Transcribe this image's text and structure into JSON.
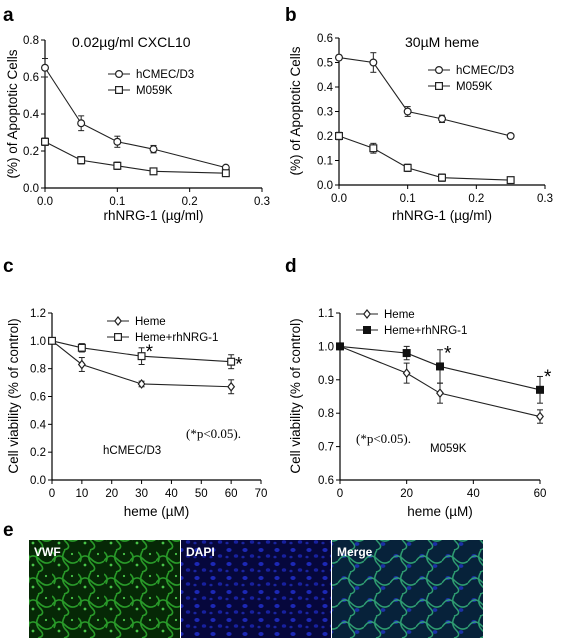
{
  "chart_data": [
    {
      "panel": "a",
      "type": "line",
      "title": "0.02µg/ml CXCL10",
      "xlabel": "rhNRG-1 (µg/ml)",
      "ylabel": "(%) of Apoptotic Cells",
      "xlim": [
        0,
        0.3
      ],
      "ylim": [
        0,
        0.8
      ],
      "xticks": [
        "0.0",
        "0.1",
        "0.2",
        "0.3"
      ],
      "yticks": [
        "0.0",
        "0.2",
        "0.4",
        "0.6",
        "0.8"
      ],
      "legend_position": "top-right",
      "series": [
        {
          "name": "hCMEC/D3",
          "marker": "circle-open",
          "x": [
            0,
            0.05,
            0.1,
            0.15,
            0.25
          ],
          "y": [
            0.65,
            0.35,
            0.25,
            0.21,
            0.11
          ],
          "err": [
            0.05,
            0.04,
            0.03,
            0.02,
            0.01
          ]
        },
        {
          "name": "M059K",
          "marker": "square-open",
          "x": [
            0,
            0.05,
            0.1,
            0.15,
            0.25
          ],
          "y": [
            0.25,
            0.15,
            0.12,
            0.09,
            0.08
          ],
          "err": [
            0.02,
            0.02,
            0.02,
            0.01,
            0.01
          ]
        }
      ]
    },
    {
      "panel": "b",
      "type": "line",
      "title": "30µM heme",
      "xlabel": "rhNRG-1 (µg/ml)",
      "ylabel": "(%) of Apoptotic Cells",
      "xlim": [
        0,
        0.3
      ],
      "ylim": [
        0,
        0.6
      ],
      "xticks": [
        "0.0",
        "0.1",
        "0.2",
        "0.3"
      ],
      "yticks": [
        "0.0",
        "0.1",
        "0.2",
        "0.3",
        "0.4",
        "0.5",
        "0.6"
      ],
      "legend_position": "top-right",
      "series": [
        {
          "name": "hCMEC/D3",
          "marker": "circle-open",
          "x": [
            0,
            0.05,
            0.1,
            0.15,
            0.25
          ],
          "y": [
            0.52,
            0.5,
            0.3,
            0.27,
            0.2
          ],
          "err": [
            0.01,
            0.04,
            0.02,
            0.015,
            0.005
          ]
        },
        {
          "name": "M059K",
          "marker": "square-open",
          "x": [
            0,
            0.05,
            0.1,
            0.15,
            0.25
          ],
          "y": [
            0.2,
            0.15,
            0.07,
            0.03,
            0.02
          ],
          "err": [
            0.015,
            0.02,
            0.015,
            0.015,
            0.01
          ]
        }
      ]
    },
    {
      "panel": "c",
      "type": "line",
      "xlabel": "heme (µM)",
      "ylabel": "Cell viability (% of control)",
      "xlim": [
        0,
        70
      ],
      "ylim": [
        0,
        1.2
      ],
      "xticks": [
        "0",
        "10",
        "20",
        "30",
        "40",
        "50",
        "60",
        "70"
      ],
      "yticks": [
        "0.0",
        "0.2",
        "0.4",
        "0.6",
        "0.8",
        "1.0",
        "1.2"
      ],
      "legend_position": "top-right",
      "annotation": "(*p<0.05).",
      "inner_label": "hCMEC/D3",
      "series": [
        {
          "name": "Heme",
          "marker": "diamond-open",
          "x": [
            0,
            10,
            30,
            60
          ],
          "y": [
            1.0,
            0.83,
            0.69,
            0.67
          ],
          "err": [
            0.0,
            0.05,
            0.02,
            0.05
          ]
        },
        {
          "name": "Heme+rhNRG-1",
          "marker": "square-open",
          "x": [
            0,
            10,
            30,
            60
          ],
          "y": [
            1.0,
            0.95,
            0.89,
            0.85
          ],
          "err": [
            0.0,
            0.03,
            0.06,
            0.05
          ]
        }
      ],
      "stars": [
        {
          "x": 30,
          "y": 0.95
        },
        {
          "x": 60,
          "y": 0.86
        }
      ],
      "star_text": "*"
    },
    {
      "panel": "d",
      "type": "line",
      "xlabel": "heme (µM)",
      "ylabel": "Cell viability (% of control)",
      "xlim": [
        0,
        60
      ],
      "ylim": [
        0.6,
        1.1
      ],
      "xticks": [
        "0",
        "20",
        "40",
        "60"
      ],
      "yticks": [
        "0.6",
        "0.7",
        "0.8",
        "0.9",
        "1.0",
        "1.1"
      ],
      "legend_position": "top-right",
      "annotation": "(*p<0.05).",
      "inner_label": "M059K",
      "series": [
        {
          "name": "Heme",
          "marker": "diamond-open",
          "x": [
            0,
            20,
            30,
            60
          ],
          "y": [
            1.0,
            0.92,
            0.86,
            0.79
          ],
          "err": [
            0.0,
            0.03,
            0.03,
            0.02
          ]
        },
        {
          "name": "Heme+rhNRG-1",
          "marker": "square-filled",
          "x": [
            0,
            20,
            30,
            60
          ],
          "y": [
            1.0,
            0.98,
            0.94,
            0.87
          ],
          "err": [
            0.0,
            0.02,
            0.05,
            0.04
          ]
        }
      ],
      "stars": [
        {
          "x": 30,
          "y": 0.99
        },
        {
          "x": 60,
          "y": 0.92
        }
      ],
      "star_text": "*"
    }
  ],
  "panel_e": {
    "letter": "e",
    "tiles": [
      {
        "label": "VWF",
        "color": "#1f8a1f",
        "bg": "#062806"
      },
      {
        "label": "DAPI",
        "color": "#1a22b8",
        "bg": "#05063a"
      },
      {
        "label": "Merge",
        "color": "#2a8f6a",
        "bg": "#071f2c"
      }
    ]
  }
}
